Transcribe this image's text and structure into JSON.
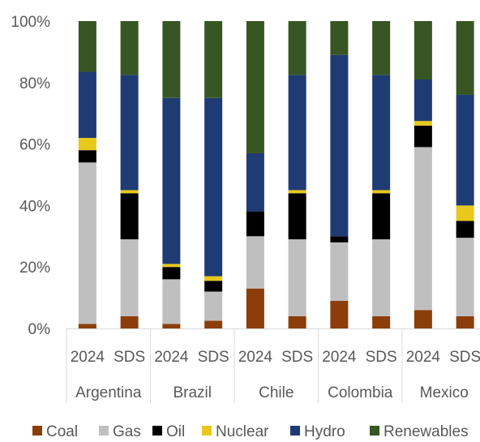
{
  "chart_data": {
    "type": "bar",
    "stacked": true,
    "percent_axis": true,
    "y_ticks": [
      "0%",
      "20%",
      "40%",
      "60%",
      "80%",
      "100%"
    ],
    "ylim": [
      0,
      100
    ],
    "groups": [
      {
        "name": "Argentina",
        "categories": [
          "2024",
          "SDS"
        ]
      },
      {
        "name": "Brazil",
        "categories": [
          "2024",
          "SDS"
        ]
      },
      {
        "name": "Chile",
        "categories": [
          "2024",
          "SDS"
        ]
      },
      {
        "name": "Colombia",
        "categories": [
          "2024",
          "SDS"
        ]
      },
      {
        "name": "Mexico",
        "categories": [
          "2024",
          "SDS"
        ]
      }
    ],
    "series": [
      {
        "name": "Coal",
        "color": "#8B3E0A",
        "values": [
          1.5,
          4,
          1.5,
          2.5,
          13,
          4,
          9,
          4,
          6,
          4
        ]
      },
      {
        "name": "Gas",
        "color": "#BFBFBF",
        "values": [
          52.5,
          25,
          14.5,
          9.5,
          17,
          25,
          19,
          25,
          53,
          25.5
        ]
      },
      {
        "name": "Oil",
        "color": "#000000",
        "values": [
          4,
          15,
          4,
          3.5,
          8,
          15,
          2,
          15,
          7,
          5.5
        ]
      },
      {
        "name": "Nuclear",
        "color": "#E8C81A",
        "values": [
          4,
          1,
          1,
          1.5,
          0,
          1,
          0,
          1,
          1.5,
          5
        ]
      },
      {
        "name": "Hydro",
        "color": "#1F3B73",
        "values": [
          21.5,
          37.5,
          54,
          58,
          19,
          37.5,
          59,
          37.5,
          13.5,
          36
        ]
      },
      {
        "name": "Renewables",
        "color": "#375623",
        "values": [
          16.5,
          17.5,
          25,
          25,
          43,
          17.5,
          11,
          17.5,
          19,
          24
        ]
      }
    ],
    "legend": "bottom",
    "grid": false
  }
}
